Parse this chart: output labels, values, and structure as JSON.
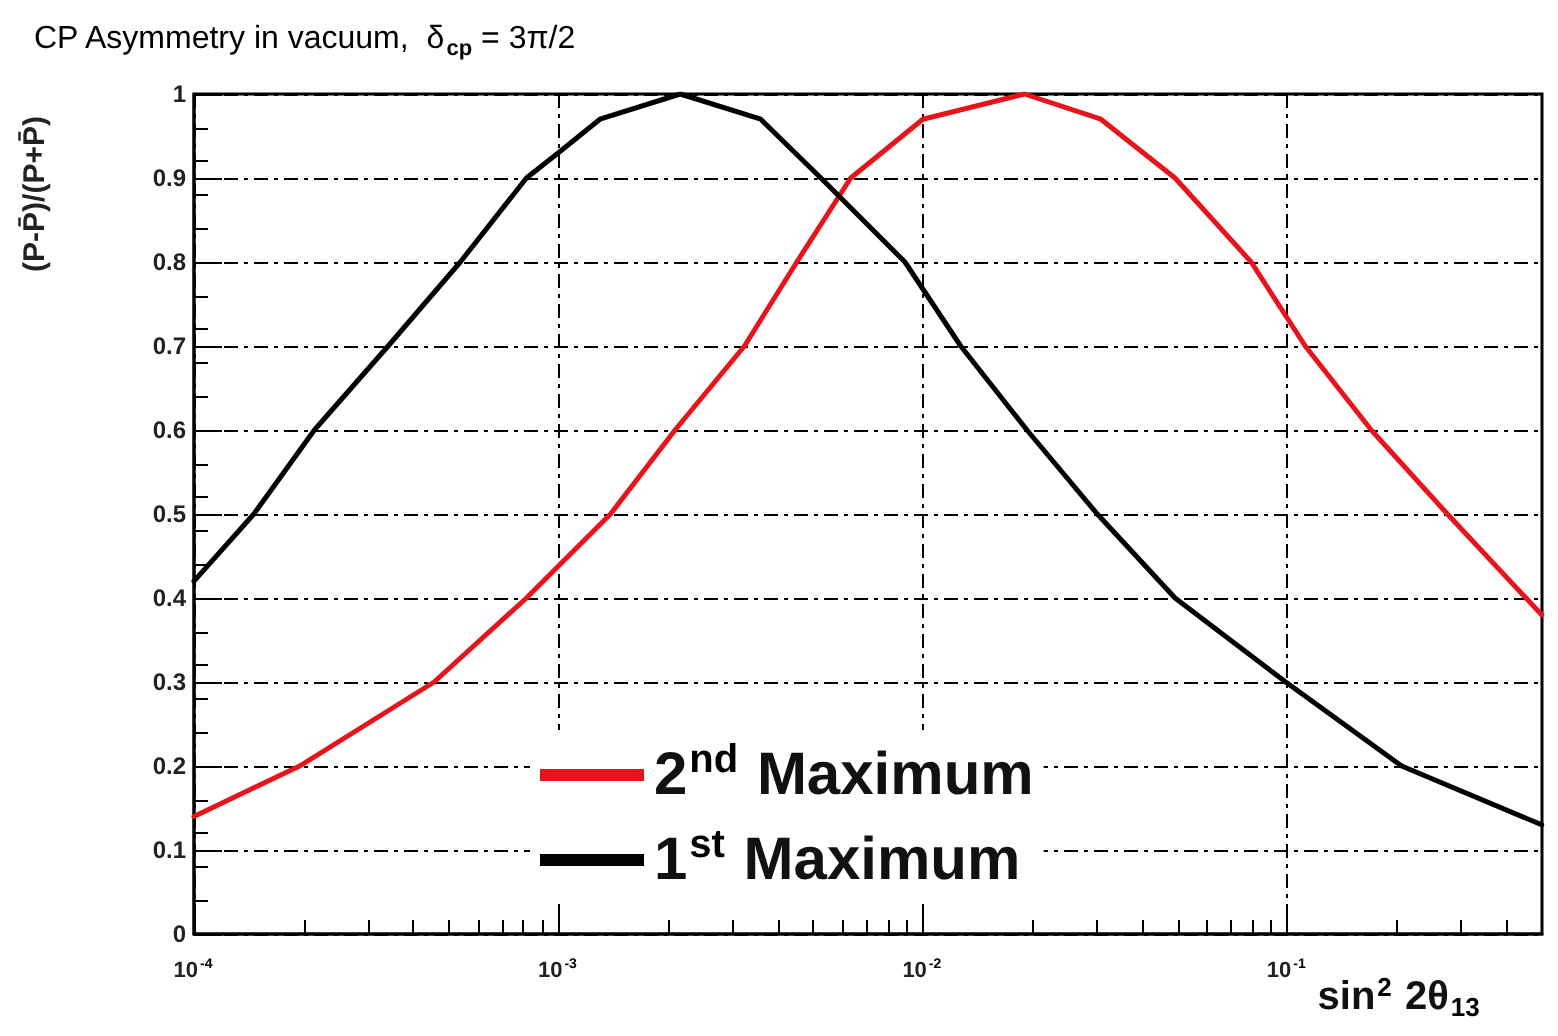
{
  "chart_data": {
    "type": "line",
    "title": "CP Asymmetry in vacuum,  δ$_{cp}$ = 3π/2",
    "xlabel": "sin$^{2}$ 2θ$_{13}$",
    "ylabel": "(P-P̄)/(P+P̄)",
    "log": "x",
    "grid": true,
    "legend": "bottom",
    "marker": "none",
    "line_style": "solid",
    "xlim": [
      0.0001,
      0.5
    ],
    "xticks": [
      {
        "value": 0.0001,
        "label": "10$^{-4}$"
      },
      {
        "value": 0.001,
        "label": "10$^{-3}$"
      },
      {
        "value": 0.01,
        "label": "10$^{-2}$"
      },
      {
        "value": 0.1,
        "label": "10$^{-1}$"
      }
    ],
    "ylim": [
      0,
      1
    ],
    "yticks": [
      0,
      0.1,
      0.2,
      0.3,
      0.4,
      0.5,
      0.6,
      0.7,
      0.8,
      0.9,
      1
    ],
    "series": [
      {
        "name": "2$^{nd}$ Maximum",
        "color": "#e8141c",
        "x": [
          0.0001,
          0.000195,
          0.000456,
          0.000817,
          0.00139,
          0.00209,
          0.00324,
          0.00451,
          0.00634,
          0.01,
          0.019,
          0.0308,
          0.0492,
          0.0796,
          0.112,
          0.17,
          0.275,
          0.499
        ],
        "values": [
          0.14,
          0.2,
          0.3,
          0.4,
          0.5,
          0.6,
          0.7,
          0.8,
          0.9,
          0.97,
          1.0,
          0.97,
          0.9,
          0.8,
          0.7,
          0.6,
          0.5,
          0.38
        ]
      },
      {
        "name": "1$^{st}$ Maximum",
        "color": "#000000",
        "x": [
          0.0001,
          0.000146,
          0.000214,
          0.000341,
          0.000538,
          0.000817,
          0.001,
          0.0013,
          0.00216,
          0.00359,
          0.00525,
          0.00893,
          0.0127,
          0.0193,
          0.0301,
          0.0492,
          0.099,
          0.206,
          0.499
        ],
        "values": [
          0.42,
          0.5,
          0.6,
          0.7,
          0.8,
          0.9,
          0.93,
          0.97,
          1.0,
          0.97,
          0.9,
          0.8,
          0.7,
          0.6,
          0.5,
          0.4,
          0.3,
          0.2,
          0.13
        ]
      }
    ]
  }
}
